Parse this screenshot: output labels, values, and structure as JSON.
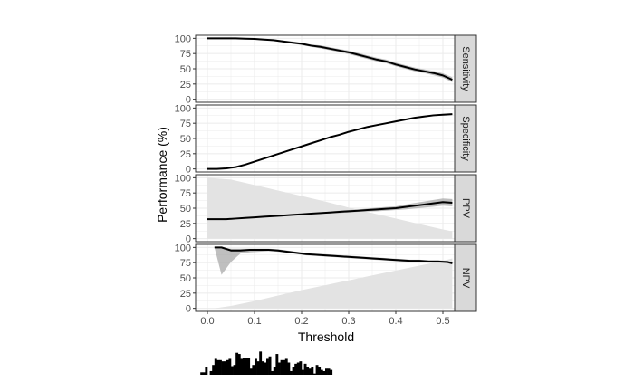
{
  "chart_data": {
    "type": "line",
    "xlabel": "Threshold",
    "ylabel": "Performance (%)",
    "xlim": [
      -0.025,
      0.525
    ],
    "x_ticks": [
      0.0,
      0.1,
      0.2,
      0.3,
      0.4,
      0.5
    ],
    "x_tick_labels": [
      "0.0",
      "0.1",
      "0.2",
      "0.3",
      "0.4",
      "0.5"
    ],
    "ylim": [
      -5,
      105
    ],
    "y_ticks": [
      0,
      25,
      50,
      75,
      100
    ],
    "y_tick_labels": [
      "0",
      "25",
      "50",
      "75",
      "100"
    ],
    "grid": true,
    "colors": {
      "panel_bg": "#ffffff",
      "grid": "#ebebeb",
      "line": "#000000",
      "ribbon": "#aaaaaa",
      "area": "#e3e3e3",
      "strip_bg": "#d9d9d9",
      "histogram": "#000000"
    },
    "panels": [
      {
        "strip": "Sensitivity",
        "x": [
          0.0,
          0.02,
          0.04,
          0.06,
          0.08,
          0.1,
          0.12,
          0.14,
          0.16,
          0.18,
          0.2,
          0.22,
          0.24,
          0.26,
          0.28,
          0.3,
          0.32,
          0.34,
          0.36,
          0.38,
          0.4,
          0.42,
          0.44,
          0.46,
          0.48,
          0.5,
          0.52
        ],
        "y": [
          100,
          100,
          100,
          100,
          99.5,
          99,
          98,
          97,
          95,
          93,
          91,
          88,
          86,
          83,
          80,
          77,
          73,
          69,
          65,
          62,
          57,
          53,
          49,
          46,
          43,
          39,
          32
        ],
        "ci_lower": [
          100,
          100,
          100,
          100,
          99,
          98,
          97,
          95.5,
          93.5,
          91,
          89,
          86,
          83.5,
          80.5,
          77.5,
          74,
          70,
          66,
          62,
          59,
          54,
          50,
          46,
          43,
          39.5,
          35.5,
          28
        ],
        "ci_upper": [
          100,
          100,
          100,
          100,
          100,
          100,
          99,
          98.5,
          96.5,
          95,
          93,
          90,
          88.5,
          85.5,
          82.5,
          80,
          76,
          72,
          68,
          65,
          60,
          56,
          52,
          49,
          46.5,
          42.5,
          36
        ]
      },
      {
        "strip": "Specificity",
        "x": [
          0.0,
          0.02,
          0.04,
          0.06,
          0.08,
          0.1,
          0.12,
          0.14,
          0.16,
          0.18,
          0.2,
          0.22,
          0.24,
          0.26,
          0.28,
          0.3,
          0.32,
          0.34,
          0.36,
          0.38,
          0.4,
          0.42,
          0.44,
          0.46,
          0.48,
          0.5,
          0.52
        ],
        "y": [
          0,
          0,
          1,
          3,
          7,
          12,
          17,
          22,
          27,
          32,
          37,
          42,
          47,
          52,
          56,
          61,
          65,
          69,
          72,
          75,
          78,
          81,
          84,
          86,
          88,
          89,
          90
        ],
        "ci_lower": [
          0,
          0,
          0.5,
          2,
          6,
          11,
          16,
          21,
          26,
          31,
          36,
          41,
          46,
          51,
          55,
          60,
          64,
          68,
          71,
          74,
          77,
          80,
          83,
          85,
          87,
          88,
          89
        ],
        "ci_upper": [
          0,
          0,
          1.5,
          4,
          8,
          13,
          18,
          23,
          28,
          33,
          38,
          43,
          48,
          53,
          57,
          62,
          66,
          70,
          73,
          76,
          79,
          82,
          85,
          87,
          89,
          90,
          91
        ]
      },
      {
        "strip": "PPV",
        "x": [
          0.0,
          0.02,
          0.04,
          0.06,
          0.08,
          0.1,
          0.12,
          0.14,
          0.16,
          0.18,
          0.2,
          0.22,
          0.24,
          0.26,
          0.28,
          0.3,
          0.32,
          0.34,
          0.36,
          0.38,
          0.4,
          0.42,
          0.44,
          0.46,
          0.48,
          0.5,
          0.52
        ],
        "y": [
          32,
          32,
          32,
          33,
          34,
          35,
          36,
          37,
          38,
          39,
          40,
          41,
          42,
          43,
          44,
          45,
          46,
          47,
          48,
          49,
          50,
          52,
          54,
          56,
          58,
          60,
          59
        ],
        "ci_lower": [
          31,
          31,
          31,
          32,
          33,
          34,
          35,
          36,
          37,
          38,
          39,
          40,
          41,
          41.5,
          42,
          43,
          44,
          44.5,
          45,
          46,
          47,
          48,
          49.5,
          51,
          52.5,
          54,
          53
        ],
        "ci_upper": [
          33,
          33,
          33,
          34,
          35,
          36,
          37,
          38,
          39,
          40,
          41,
          42,
          43,
          44.5,
          46,
          47,
          48,
          49.5,
          51,
          52,
          53,
          56,
          58.5,
          61,
          63.5,
          66,
          65
        ],
        "area": {
          "x": [
            0.0,
            0.05,
            0.1,
            0.15,
            0.2,
            0.25,
            0.3,
            0.35,
            0.4,
            0.45,
            0.5,
            0.52
          ],
          "y": [
            100,
            97,
            88,
            79,
            70,
            61,
            51,
            42,
            33,
            24,
            15,
            12
          ]
        }
      },
      {
        "strip": "NPV",
        "x": [
          0.015,
          0.03,
          0.05,
          0.07,
          0.09,
          0.11,
          0.13,
          0.15,
          0.17,
          0.19,
          0.21,
          0.23,
          0.25,
          0.27,
          0.29,
          0.31,
          0.33,
          0.35,
          0.37,
          0.39,
          0.41,
          0.43,
          0.45,
          0.47,
          0.49,
          0.51,
          0.52
        ],
        "y": [
          100,
          100,
          95,
          95,
          96,
          96,
          96,
          95,
          93,
          91,
          89,
          88,
          87,
          86,
          85,
          84,
          83,
          82,
          81,
          80,
          79,
          78,
          78,
          77,
          77,
          76,
          74
        ],
        "ci_lower": [
          100,
          55,
          76,
          90,
          92,
          93,
          94,
          93,
          91,
          89,
          87,
          86,
          85,
          84,
          83,
          82,
          81,
          80,
          79,
          78,
          77,
          76,
          76,
          75,
          75,
          74,
          72
        ],
        "ci_upper": [
          100,
          100,
          98,
          98,
          98,
          98,
          98,
          97,
          95,
          93,
          91,
          90,
          89,
          88,
          87,
          86,
          85,
          84,
          83,
          82,
          81,
          80,
          80,
          79,
          79,
          78,
          76
        ],
        "area": {
          "x": [
            0.015,
            0.05,
            0.1,
            0.15,
            0.2,
            0.25,
            0.3,
            0.35,
            0.4,
            0.45,
            0.5,
            0.52
          ],
          "y": [
            0,
            4,
            12,
            21,
            30,
            38,
            46,
            54,
            62,
            70,
            78,
            82
          ]
        }
      }
    ],
    "histogram": {
      "x_start": -0.015,
      "bin_width": 0.005,
      "counts": [
        2,
        2,
        6,
        0,
        3,
        8,
        13,
        12,
        12,
        11,
        11,
        12,
        13,
        7,
        8,
        18,
        17,
        13,
        14,
        14,
        14,
        5,
        8,
        13,
        11,
        19,
        11,
        10,
        13,
        15,
        3,
        6,
        17,
        10,
        12,
        12,
        13,
        10,
        3,
        6,
        9,
        10,
        11,
        4,
        9,
        6,
        5,
        6,
        1,
        8,
        6,
        4,
        3,
        5,
        5,
        4
      ]
    }
  }
}
